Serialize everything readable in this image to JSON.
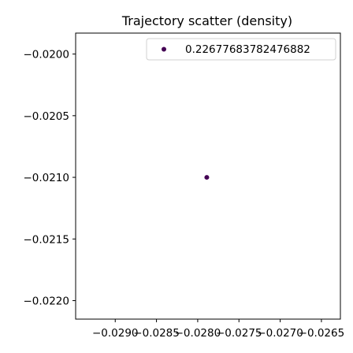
{
  "chart_data": {
    "type": "scatter",
    "title": "Trajectory scatter (density)",
    "xlabel": "",
    "ylabel": "",
    "xlim": [
      -0.02948,
      -0.02627
    ],
    "ylim": [
      -0.02215,
      -0.01983
    ],
    "x_ticks": [
      {
        "value": -0.029,
        "label": "−0.0290"
      },
      {
        "value": -0.0285,
        "label": "−0.0285"
      },
      {
        "value": -0.028,
        "label": "−0.0280"
      },
      {
        "value": -0.0275,
        "label": "−0.0275"
      },
      {
        "value": -0.027,
        "label": "−0.0270"
      },
      {
        "value": -0.0265,
        "label": "−0.0265"
      }
    ],
    "y_ticks": [
      {
        "value": -0.02,
        "label": "−0.0200"
      },
      {
        "value": -0.0205,
        "label": "−0.0205"
      },
      {
        "value": -0.021,
        "label": "−0.0210"
      },
      {
        "value": -0.0215,
        "label": "−0.0215"
      },
      {
        "value": -0.022,
        "label": "−0.0220"
      }
    ],
    "grid": false,
    "legend_position": "top-right",
    "series": [
      {
        "name": "0.22677683782476882",
        "color": "#440154",
        "points": [
          {
            "x": -0.02789,
            "y": -0.021
          }
        ]
      }
    ]
  }
}
